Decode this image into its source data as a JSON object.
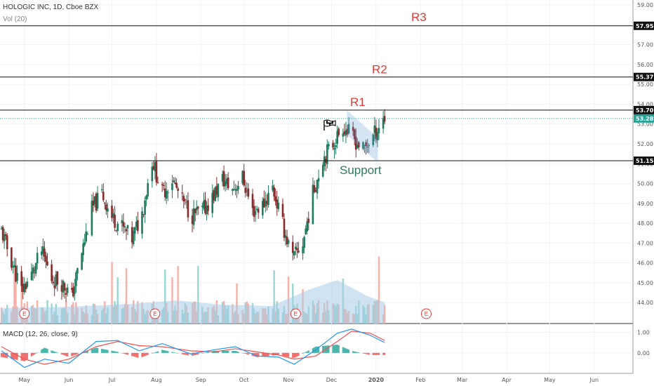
{
  "header": {
    "symbol_line": "HOLOGIC INC, 1D, Cboe BZX",
    "volume_line": "Vol (20)",
    "macd_line": "MACD (12, 26, close, 9)"
  },
  "colors": {
    "up": "#26a69a",
    "down": "#ef5350",
    "up_dark": "#1e7b5e",
    "down_dark": "#8b2a2a",
    "support": "#2e7d5b",
    "resistance_text": "#e53935",
    "channel": "#5b9bd5",
    "vol_ma": "#a9cce8",
    "macd": "#2196f3",
    "signal": "#ef5350"
  },
  "chart_data": [
    {
      "type": "candlestick",
      "title": "HOLOGIC INC, 1D, Cboe BZX",
      "x_range": [
        "2019-04-14",
        "2020-06-28"
      ],
      "x_ticks": [
        "May",
        "Jun",
        "Jul",
        "Aug",
        "Sep",
        "Oct",
        "Nov",
        "Dec",
        "2020",
        "Feb",
        "Mar",
        "Apr",
        "May",
        "Jun"
      ],
      "ylim": [
        43.3,
        59.25
      ],
      "y_ticks": [
        "44.00",
        "45.00",
        "46.00",
        "47.00",
        "48.00",
        "49.00",
        "50.00",
        "51.00",
        "52.00",
        "53.00",
        "54.00",
        "55.00",
        "56.00",
        "57.00",
        "58.00",
        "59.00"
      ],
      "horizontal_levels": [
        {
          "label": "R3",
          "value": 57.95
        },
        {
          "label": "R2",
          "value": 55.37
        },
        {
          "label": "R1",
          "value": 53.7
        },
        {
          "label": "Support",
          "value": 51.15
        }
      ],
      "last_price": "53.28",
      "channel": {
        "upper": [
          [
            "2019-12-12",
            53.65
          ],
          [
            "2020-01-02",
            52.3
          ]
        ],
        "lower": [
          [
            "2019-12-12",
            52.45
          ],
          [
            "2020-01-02",
            51.1
          ]
        ]
      },
      "earnings_markers": [
        "2019-05-01",
        "2019-07-31",
        "2019-11-06",
        "2020-02-05"
      ],
      "earnings_label": "E",
      "closes": [
        [
          "2019-04-15",
          47.6
        ],
        [
          "2019-04-22",
          46.1
        ],
        [
          "2019-04-29",
          44.6
        ],
        [
          "2019-05-06",
          45.4
        ],
        [
          "2019-05-13",
          46.6
        ],
        [
          "2019-05-20",
          45.2
        ],
        [
          "2019-05-27",
          45.0
        ],
        [
          "2019-06-03",
          44.3
        ],
        [
          "2019-06-10",
          46.5
        ],
        [
          "2019-06-17",
          48.7
        ],
        [
          "2019-06-24",
          49.5
        ],
        [
          "2019-07-01",
          48.3
        ],
        [
          "2019-07-08",
          47.8
        ],
        [
          "2019-07-15",
          47.2
        ],
        [
          "2019-07-22",
          48.5
        ],
        [
          "2019-07-29",
          51.2
        ],
        [
          "2019-08-05",
          49.5
        ],
        [
          "2019-08-12",
          50.2
        ],
        [
          "2019-08-19",
          49.1
        ],
        [
          "2019-08-26",
          48.4
        ],
        [
          "2019-09-02",
          48.6
        ],
        [
          "2019-09-09",
          49.3
        ],
        [
          "2019-09-16",
          50.2
        ],
        [
          "2019-09-23",
          49.7
        ],
        [
          "2019-09-30",
          50.3
        ],
        [
          "2019-10-07",
          48.6
        ],
        [
          "2019-10-14",
          48.9
        ],
        [
          "2019-10-21",
          49.8
        ],
        [
          "2019-10-28",
          47.9
        ],
        [
          "2019-11-04",
          46.2
        ],
        [
          "2019-11-11",
          47.0
        ],
        [
          "2019-11-18",
          49.5
        ],
        [
          "2019-11-25",
          51.3
        ],
        [
          "2019-12-02",
          52.0
        ],
        [
          "2019-12-09",
          52.9
        ],
        [
          "2019-12-16",
          52.3
        ],
        [
          "2019-12-23",
          51.7
        ],
        [
          "2019-12-30",
          52.4
        ],
        [
          "2020-01-06",
          53.28
        ]
      ],
      "volume_ma_label": "Vol (20)"
    },
    {
      "type": "line",
      "title": "MACD (12, 26, close, 9)",
      "ylim": [
        -0.75,
        1.35
      ],
      "y_ticks": [
        "1.00",
        "0.00"
      ],
      "series": [
        {
          "role": "macd",
          "values": [
            [
              "2019-04-15",
              0.1
            ],
            [
              "2019-05-01",
              -0.7
            ],
            [
              "2019-05-15",
              -0.3
            ],
            [
              "2019-06-01",
              -0.5
            ],
            [
              "2019-06-20",
              0.55
            ],
            [
              "2019-07-05",
              0.6
            ],
            [
              "2019-07-20",
              0.1
            ],
            [
              "2019-08-05",
              0.45
            ],
            [
              "2019-08-25",
              -0.05
            ],
            [
              "2019-09-10",
              0.15
            ],
            [
              "2019-09-25",
              0.3
            ],
            [
              "2019-10-10",
              -0.15
            ],
            [
              "2019-10-25",
              -0.2
            ],
            [
              "2019-11-05",
              -0.55
            ],
            [
              "2019-11-20",
              0.15
            ],
            [
              "2019-12-05",
              0.95
            ],
            [
              "2019-12-15",
              1.15
            ],
            [
              "2019-12-28",
              0.85
            ],
            [
              "2020-01-07",
              0.5
            ]
          ]
        },
        {
          "role": "signal",
          "values": [
            [
              "2019-04-15",
              0.3
            ],
            [
              "2019-05-01",
              -0.3
            ],
            [
              "2019-05-15",
              -0.55
            ],
            [
              "2019-06-01",
              -0.3
            ],
            [
              "2019-06-20",
              0.3
            ],
            [
              "2019-07-05",
              0.55
            ],
            [
              "2019-07-20",
              0.35
            ],
            [
              "2019-08-05",
              0.3
            ],
            [
              "2019-08-25",
              0.1
            ],
            [
              "2019-09-10",
              0.05
            ],
            [
              "2019-09-25",
              0.2
            ],
            [
              "2019-10-10",
              0.05
            ],
            [
              "2019-10-25",
              -0.1
            ],
            [
              "2019-11-05",
              -0.3
            ],
            [
              "2019-11-20",
              -0.15
            ],
            [
              "2019-12-05",
              0.55
            ],
            [
              "2019-12-15",
              1.05
            ],
            [
              "2019-12-28",
              0.95
            ],
            [
              "2020-01-07",
              0.6
            ]
          ]
        }
      ]
    }
  ]
}
